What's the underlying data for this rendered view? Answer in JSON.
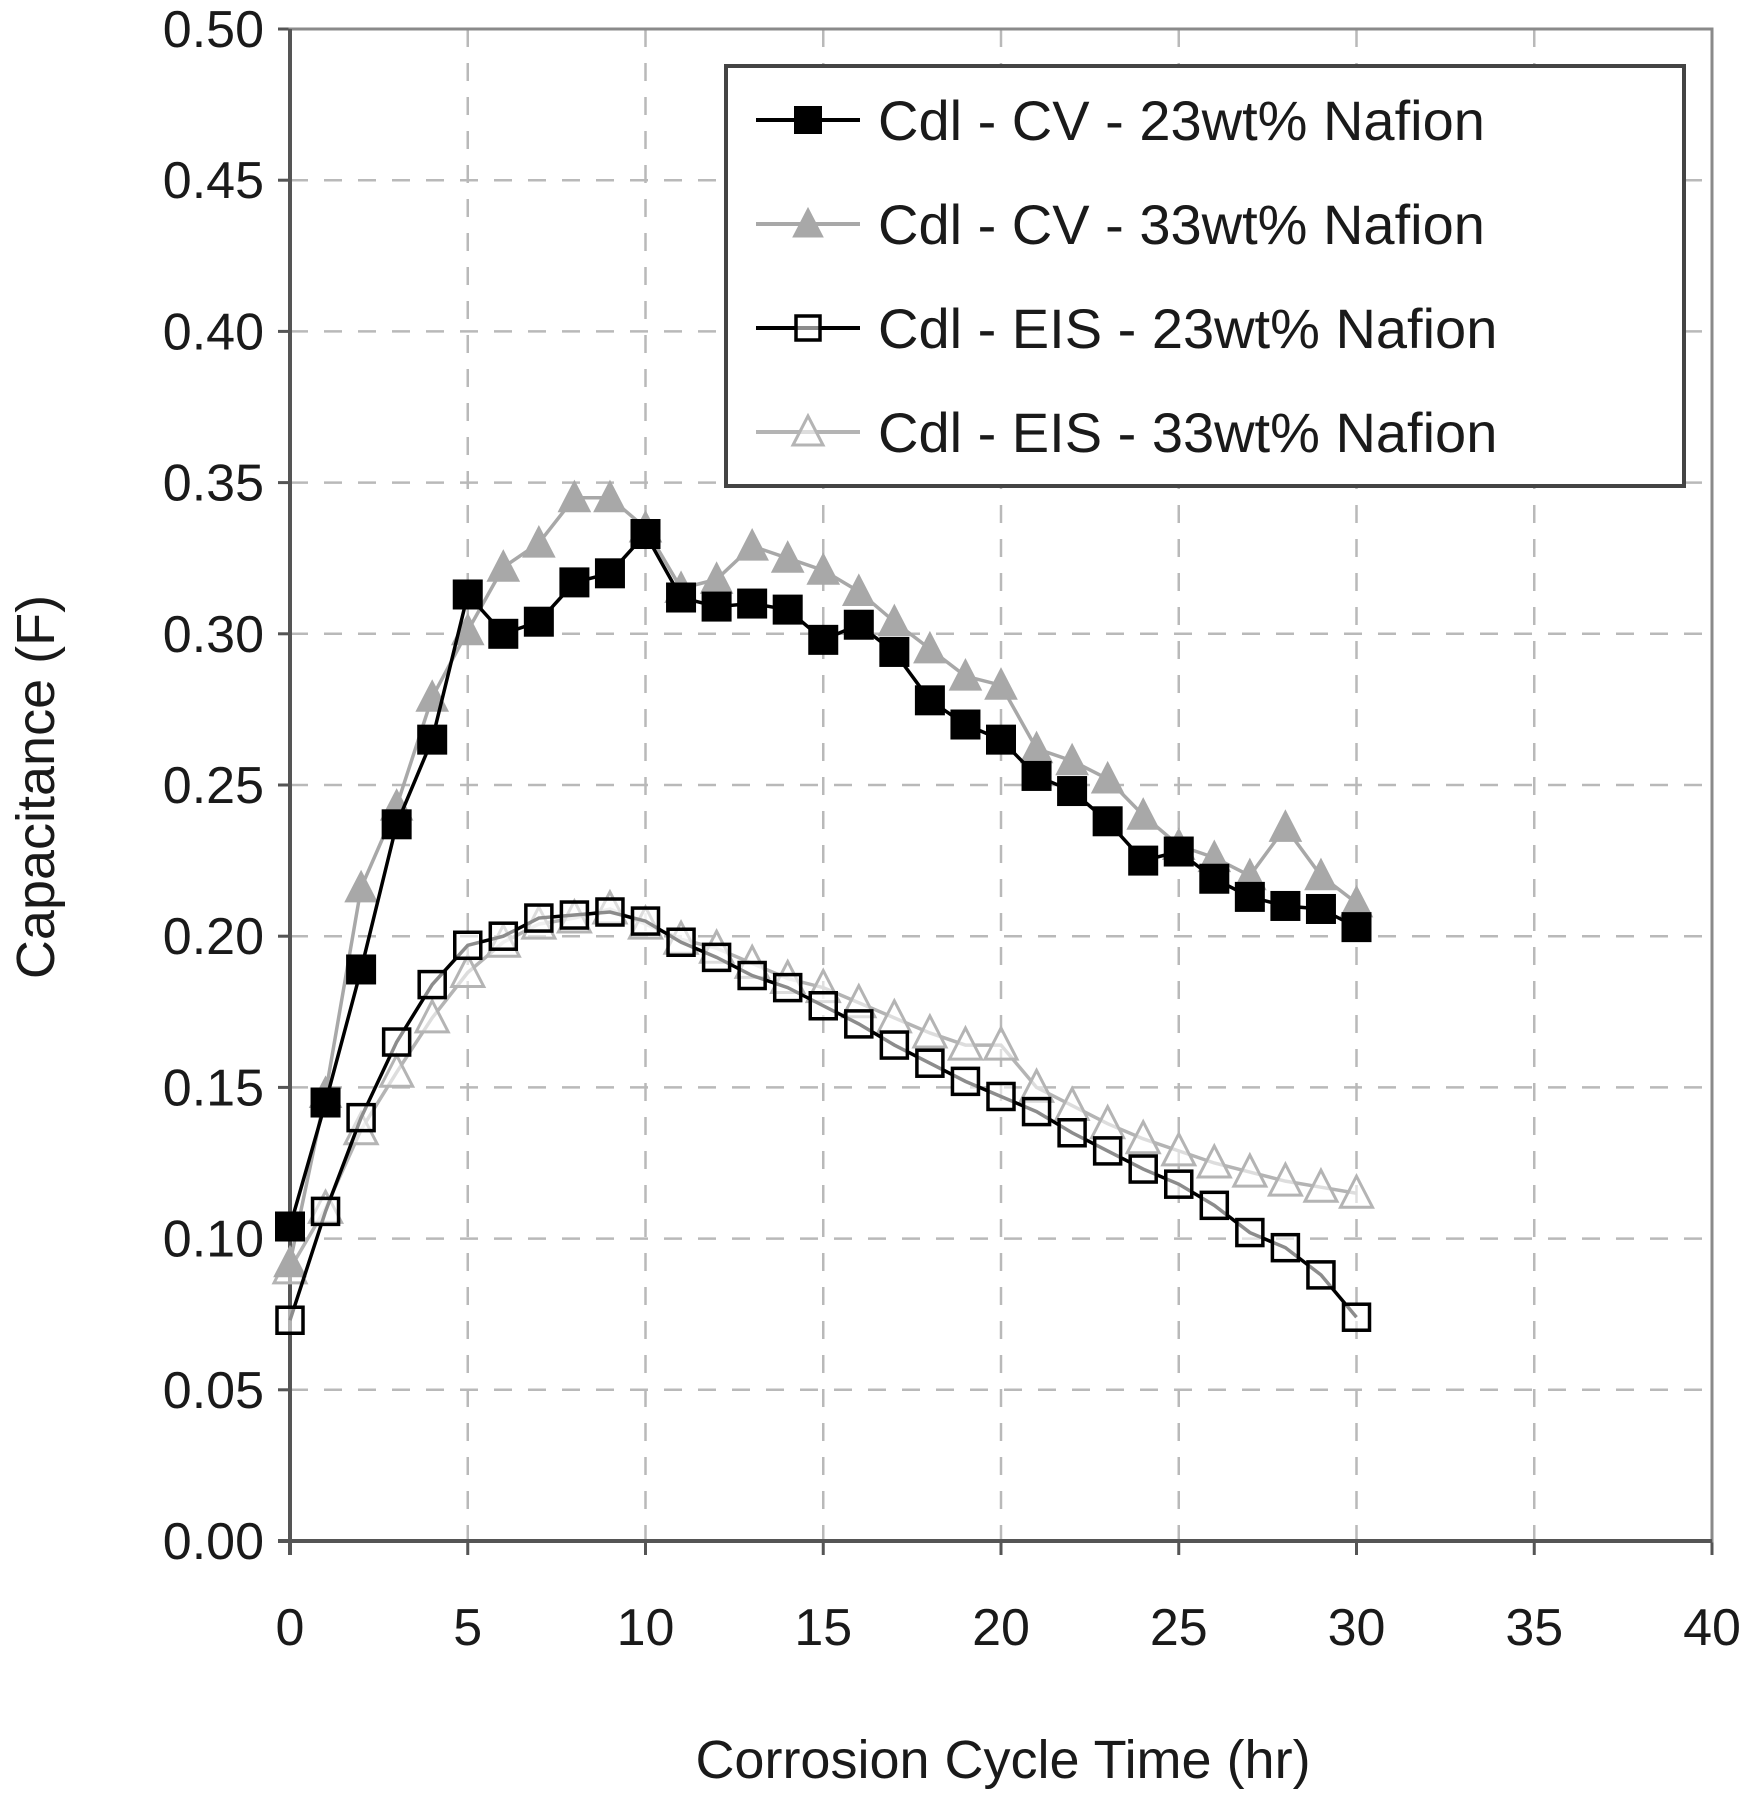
{
  "chart_data": {
    "type": "line",
    "title": "",
    "xlabel": "Corrosion Cycle Time (hr)",
    "ylabel": "Capacitance (F)",
    "xlim": [
      0,
      40
    ],
    "ylim": [
      0,
      0.5
    ],
    "xticks": [
      "0",
      "5",
      "10",
      "15",
      "20",
      "25",
      "30",
      "35",
      "40"
    ],
    "yticks": [
      "0.00",
      "0.05",
      "0.10",
      "0.15",
      "0.20",
      "0.25",
      "0.30",
      "0.35",
      "0.40",
      "0.45",
      "0.50"
    ],
    "grid": true,
    "legend_position": "upper right",
    "x": [
      0,
      1,
      2,
      3,
      4,
      5,
      6,
      7,
      8,
      9,
      10,
      11,
      12,
      13,
      14,
      15,
      16,
      17,
      18,
      19,
      20,
      21,
      22,
      23,
      24,
      25,
      26,
      27,
      28,
      29,
      30
    ],
    "series": [
      {
        "name": "Cdl - CV - 23wt% Nafion",
        "marker": "filled-square",
        "color": "#000000",
        "values": [
          0.104,
          0.145,
          0.189,
          0.237,
          0.265,
          0.313,
          0.3,
          0.304,
          0.317,
          0.32,
          0.333,
          0.312,
          0.309,
          0.31,
          0.308,
          0.298,
          0.303,
          0.294,
          0.278,
          0.27,
          0.265,
          0.253,
          0.248,
          0.238,
          0.225,
          0.228,
          0.219,
          0.213,
          0.21,
          0.209,
          0.203
        ]
      },
      {
        "name": "Cdl - CV - 33wt% Nafion",
        "marker": "filled-triangle",
        "color": "#a8a8a8",
        "values": [
          0.092,
          0.148,
          0.216,
          0.243,
          0.279,
          0.301,
          0.322,
          0.33,
          0.345,
          0.345,
          0.335,
          0.315,
          0.318,
          0.329,
          0.325,
          0.321,
          0.314,
          0.304,
          0.295,
          0.286,
          0.283,
          0.262,
          0.258,
          0.252,
          0.24,
          0.23,
          0.226,
          0.22,
          0.236,
          0.22,
          0.211
        ]
      },
      {
        "name": "Cdl - EIS - 23wt% Nafion",
        "marker": "open-square",
        "color": "#000000",
        "values": [
          0.073,
          0.109,
          0.14,
          0.165,
          0.184,
          0.197,
          0.2,
          0.206,
          0.207,
          0.208,
          0.205,
          0.198,
          0.193,
          0.187,
          0.183,
          0.177,
          0.171,
          0.164,
          0.158,
          0.152,
          0.147,
          0.142,
          0.135,
          0.129,
          0.123,
          0.118,
          0.111,
          0.102,
          0.097,
          0.088,
          0.074
        ]
      },
      {
        "name": "Cdl - EIS - 33wt% Nafion",
        "marker": "open-triangle",
        "color": "#b4b4b4",
        "values": [
          0.09,
          0.11,
          0.136,
          0.155,
          0.173,
          0.188,
          0.198,
          0.204,
          0.206,
          0.209,
          0.204,
          0.199,
          0.196,
          0.191,
          0.186,
          0.183,
          0.178,
          0.173,
          0.168,
          0.164,
          0.164,
          0.15,
          0.144,
          0.138,
          0.133,
          0.129,
          0.125,
          0.122,
          0.119,
          0.117,
          0.115
        ]
      }
    ]
  }
}
